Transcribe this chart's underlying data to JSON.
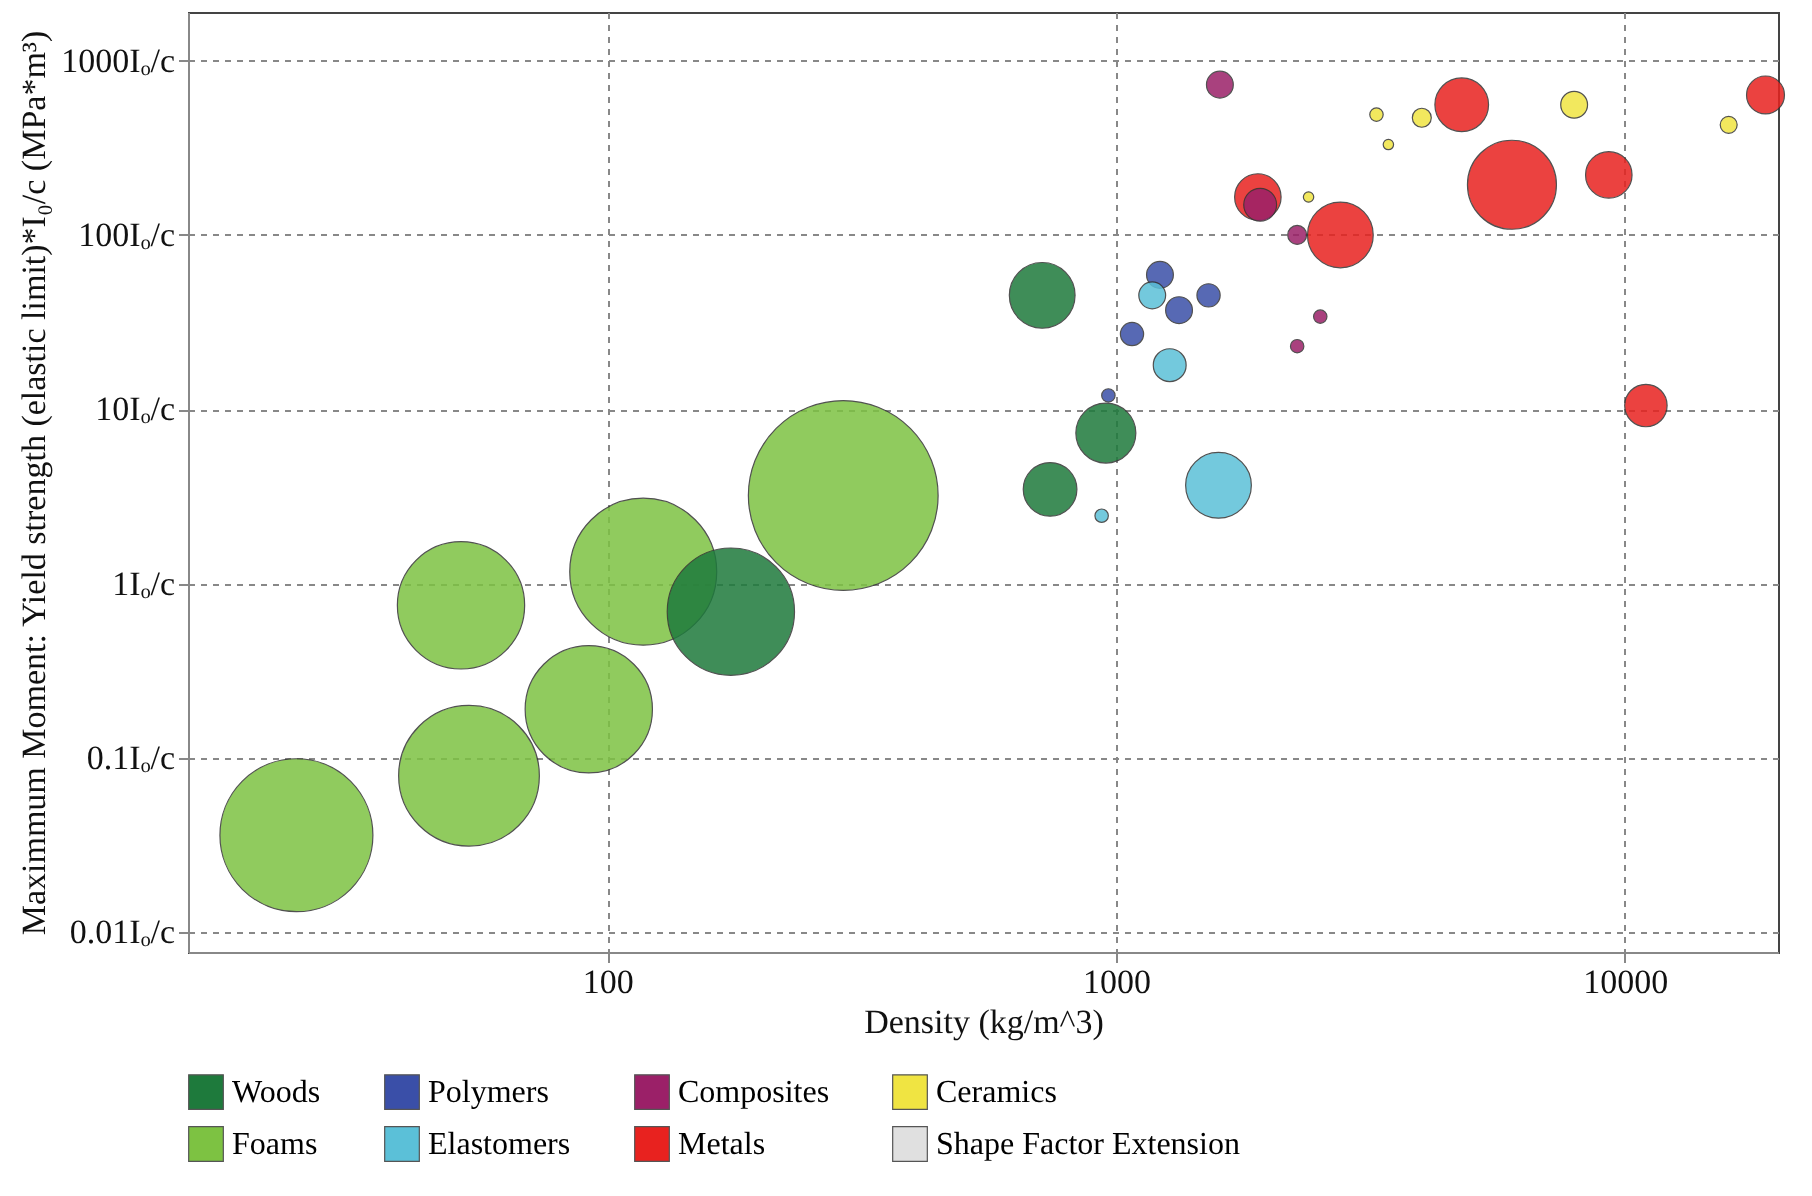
{
  "chart_data": {
    "type": "bubble",
    "xlabel": "Density (kg/m^3)",
    "ylabel": "Maximmum Moment: Yield strength (elastic limit)*I₀/c (MPa*m³)",
    "log": "xy",
    "grid": true,
    "legend": "bottom",
    "xlim": [
      15,
      20000
    ],
    "ylim": [
      0.0077,
      1900
    ],
    "xticks": [
      100,
      1000,
      10000
    ],
    "yticks": [
      {
        "value": 0.01,
        "label": "0.01Iₒ/c"
      },
      {
        "value": 0.1,
        "label": "0.1Iₒ/c"
      },
      {
        "value": 1,
        "label": "1Iₒ/c"
      },
      {
        "value": 10,
        "label": "10Iₒ/c"
      },
      {
        "value": 100,
        "label": "100Iₒ/c"
      },
      {
        "value": 1000,
        "label": "1000Iₒ/c"
      }
    ],
    "series": [
      {
        "name": "Woods",
        "color": "#1e7a3c",
        "x": [
          175,
          716,
          742,
          955
        ],
        "values": [
          0.69,
          45,
          3.47,
          7.3
        ],
        "sizes": [
          0.45,
          0.12,
          0.08,
          0.1
        ]
      },
      {
        "name": "Polymers",
        "color": "#3a4fa8",
        "x": [
          1220,
          1330,
          1520,
          1075,
          966
        ],
        "values": [
          59,
          37,
          45,
          27,
          12
        ],
        "sizes": [
          0.02,
          0.02,
          0.015,
          0.015,
          0.005
        ]
      },
      {
        "name": "Composites",
        "color": "#9b2068",
        "x": [
          1600,
          1920,
          2270,
          2270,
          2520
        ],
        "values": [
          728,
          149,
          100,
          23,
          34
        ],
        "sizes": [
          0.02,
          0.03,
          0.01,
          0.005,
          0.005
        ]
      },
      {
        "name": "Ceramics",
        "color": "#f0e442",
        "x": [
          3250,
          3990,
          16000,
          2390,
          3430,
          7950
        ],
        "values": [
          490,
          470,
          428,
          165,
          330,
          558
        ],
        "sizes": [
          0.005,
          0.01,
          0.008,
          0.003,
          0.003,
          0.02
        ]
      },
      {
        "name": "Foams",
        "color": "#7dc242",
        "x": [
          24.5,
          51.6,
          53.5,
          92,
          117.7,
          291
        ],
        "values": [
          0.036,
          0.75,
          0.079,
          0.19,
          1.17,
          3.2
        ],
        "sizes": [
          0.65,
          0.45,
          0.55,
          0.45,
          0.6,
          1
        ]
      },
      {
        "name": "Elastomers",
        "color": "#5bc0d8",
        "x": [
          1590,
          1275,
          937,
          1178
        ],
        "values": [
          3.66,
          17.9,
          2.45,
          45
        ],
        "sizes": [
          0.12,
          0.03,
          0.005,
          0.02
        ]
      },
      {
        "name": "Metals",
        "color": "#e8221f",
        "x": [
          2760,
          1900,
          4780,
          6000,
          9300,
          11000,
          18900
        ],
        "values": [
          100,
          165,
          558,
          194,
          221,
          10.5,
          635
        ],
        "sizes": [
          0.12,
          0.06,
          0.08,
          0.22,
          0.06,
          0.05,
          0.04
        ]
      },
      {
        "name": "Shape Factor Extension",
        "color": "#e0e0e0"
      }
    ]
  }
}
